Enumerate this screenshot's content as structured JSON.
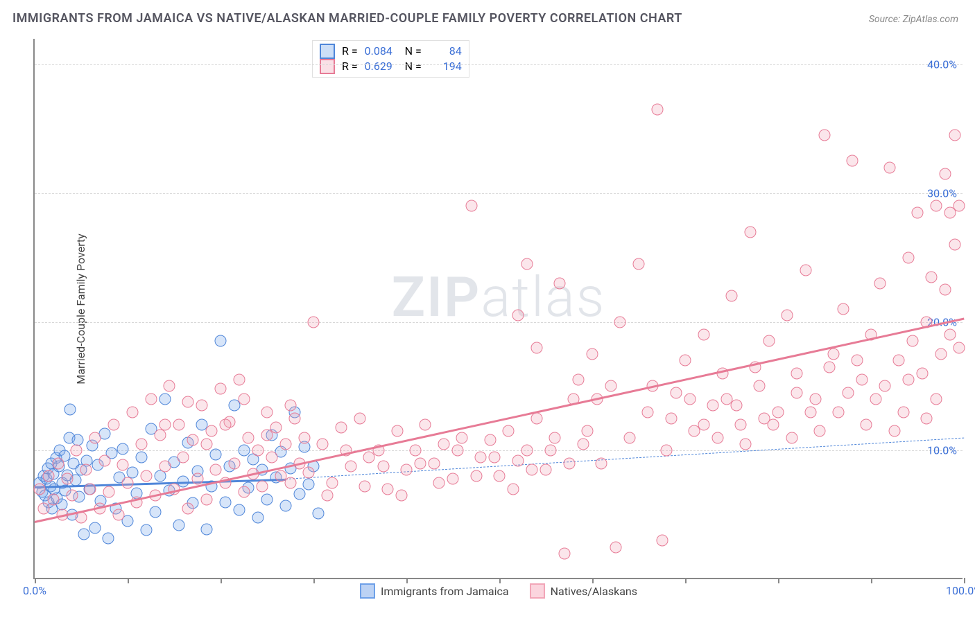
{
  "title": "IMMIGRANTS FROM JAMAICA VS NATIVE/ALASKAN MARRIED-COUPLE FAMILY POVERTY CORRELATION CHART",
  "source": "Source: ZipAtlas.com",
  "ylabel": "Married-Couple Family Poverty",
  "watermark_a": "ZIP",
  "watermark_b": "atlas",
  "chart": {
    "type": "scatter",
    "xlim": [
      0,
      100
    ],
    "ylim": [
      0,
      42
    ],
    "xtick_positions": [
      0,
      10,
      20,
      30,
      40,
      50,
      60,
      70,
      80,
      90,
      100
    ],
    "xtick_labels": {
      "0": "0.0%",
      "100": "100.0%"
    },
    "ytick_positions": [
      10,
      20,
      30,
      40
    ],
    "ytick_labels": {
      "10": "10.0%",
      "20": "20.0%",
      "30": "30.0%",
      "40": "40.0%"
    },
    "grid_color": "#d8d8d8",
    "background_color": "#ffffff",
    "axis_color": "#888888",
    "label_color": "#3b6fd6",
    "marker_size": 17,
    "marker_border_width": 1.5,
    "marker_fill_opacity": 0.28,
    "series": [
      {
        "name": "Immigrants from Jamaica",
        "color": "#6ea0e8",
        "border_color": "#4f86d9",
        "r": "0.084",
        "n": "84",
        "trend": {
          "x0": 0,
          "y0": 7.2,
          "x1": 27,
          "y1": 7.8,
          "solid_width": 3,
          "dashed_to_x": 100,
          "dashed_to_y": 11.0
        },
        "points": [
          [
            0.5,
            7.5
          ],
          [
            0.8,
            6.8
          ],
          [
            1.0,
            8.0
          ],
          [
            1.1,
            6.5
          ],
          [
            1.3,
            7.8
          ],
          [
            1.4,
            8.6
          ],
          [
            1.5,
            6.0
          ],
          [
            1.7,
            7.2
          ],
          [
            1.8,
            9.0
          ],
          [
            1.9,
            5.5
          ],
          [
            2.0,
            8.2
          ],
          [
            2.1,
            7.0
          ],
          [
            2.3,
            9.4
          ],
          [
            2.4,
            6.3
          ],
          [
            2.6,
            8.8
          ],
          [
            2.7,
            10.0
          ],
          [
            2.9,
            5.8
          ],
          [
            3.0,
            7.5
          ],
          [
            3.2,
            9.6
          ],
          [
            3.3,
            6.9
          ],
          [
            3.5,
            8.1
          ],
          [
            3.7,
            11.0
          ],
          [
            3.8,
            13.2
          ],
          [
            4.0,
            5.0
          ],
          [
            4.2,
            9.0
          ],
          [
            4.4,
            7.7
          ],
          [
            4.6,
            10.8
          ],
          [
            4.8,
            6.4
          ],
          [
            5.0,
            8.5
          ],
          [
            5.3,
            3.5
          ],
          [
            5.6,
            9.2
          ],
          [
            5.9,
            7.0
          ],
          [
            6.2,
            10.4
          ],
          [
            6.5,
            4.0
          ],
          [
            6.8,
            8.9
          ],
          [
            7.1,
            6.1
          ],
          [
            7.5,
            11.3
          ],
          [
            7.9,
            3.2
          ],
          [
            8.3,
            9.8
          ],
          [
            8.7,
            5.5
          ],
          [
            9.1,
            7.9
          ],
          [
            9.5,
            10.1
          ],
          [
            10.0,
            4.5
          ],
          [
            10.5,
            8.3
          ],
          [
            11.0,
            6.7
          ],
          [
            11.5,
            9.5
          ],
          [
            12.0,
            3.8
          ],
          [
            12.5,
            11.7
          ],
          [
            13.0,
            5.2
          ],
          [
            13.5,
            8.0
          ],
          [
            14.0,
            14.0
          ],
          [
            14.5,
            6.9
          ],
          [
            15.0,
            9.1
          ],
          [
            15.5,
            4.2
          ],
          [
            16.0,
            7.6
          ],
          [
            16.5,
            10.6
          ],
          [
            17.0,
            5.9
          ],
          [
            17.5,
            8.4
          ],
          [
            18.0,
            12.0
          ],
          [
            18.5,
            3.9
          ],
          [
            19.0,
            7.2
          ],
          [
            19.5,
            9.7
          ],
          [
            20.0,
            18.5
          ],
          [
            20.5,
            6.0
          ],
          [
            21.0,
            8.8
          ],
          [
            21.5,
            13.5
          ],
          [
            22.0,
            5.4
          ],
          [
            22.5,
            10.0
          ],
          [
            23.0,
            7.1
          ],
          [
            23.5,
            9.3
          ],
          [
            24.0,
            4.8
          ],
          [
            24.5,
            8.5
          ],
          [
            25.0,
            6.2
          ],
          [
            25.5,
            11.2
          ],
          [
            26.0,
            7.9
          ],
          [
            26.5,
            9.9
          ],
          [
            27.0,
            5.7
          ],
          [
            27.5,
            8.6
          ],
          [
            28.0,
            13.0
          ],
          [
            28.5,
            6.6
          ],
          [
            29.0,
            10.3
          ],
          [
            29.5,
            7.4
          ],
          [
            30.0,
            8.8
          ],
          [
            30.5,
            5.1
          ]
        ]
      },
      {
        "name": "Natives/Alaskans",
        "color": "#f2a6b8",
        "border_color": "#e77b96",
        "r": "0.629",
        "n": "194",
        "trend": {
          "x0": 0,
          "y0": 4.5,
          "x1": 100,
          "y1": 20.3,
          "solid_width": 3.5
        },
        "points": [
          [
            0.5,
            7.0
          ],
          [
            1.0,
            5.5
          ],
          [
            1.5,
            8.0
          ],
          [
            2.0,
            6.2
          ],
          [
            2.5,
            9.0
          ],
          [
            3.0,
            5.0
          ],
          [
            3.5,
            7.8
          ],
          [
            4.0,
            6.5
          ],
          [
            4.5,
            10.0
          ],
          [
            5.0,
            4.8
          ],
          [
            5.5,
            8.5
          ],
          [
            6.0,
            7.0
          ],
          [
            6.5,
            11.0
          ],
          [
            7.0,
            5.5
          ],
          [
            7.5,
            9.2
          ],
          [
            8.0,
            6.8
          ],
          [
            8.5,
            12.0
          ],
          [
            9.0,
            5.0
          ],
          [
            9.5,
            8.9
          ],
          [
            10.0,
            7.5
          ],
          [
            10.5,
            13.0
          ],
          [
            11.0,
            6.0
          ],
          [
            11.5,
            10.5
          ],
          [
            12.0,
            8.0
          ],
          [
            12.5,
            14.0
          ],
          [
            13.0,
            6.5
          ],
          [
            13.5,
            11.2
          ],
          [
            14.0,
            8.8
          ],
          [
            14.5,
            15.0
          ],
          [
            15.0,
            7.0
          ],
          [
            15.5,
            12.0
          ],
          [
            16.0,
            9.5
          ],
          [
            16.5,
            5.5
          ],
          [
            17.0,
            10.8
          ],
          [
            17.5,
            7.8
          ],
          [
            18.0,
            13.5
          ],
          [
            18.5,
            6.2
          ],
          [
            19.0,
            11.5
          ],
          [
            19.5,
            8.5
          ],
          [
            20.0,
            14.8
          ],
          [
            20.5,
            7.5
          ],
          [
            21.0,
            12.2
          ],
          [
            21.5,
            9.0
          ],
          [
            22.0,
            15.5
          ],
          [
            22.5,
            6.8
          ],
          [
            23.0,
            11.0
          ],
          [
            23.5,
            8.2
          ],
          [
            24.0,
            10.0
          ],
          [
            24.5,
            7.2
          ],
          [
            25.0,
            13.0
          ],
          [
            25.5,
            9.5
          ],
          [
            26.0,
            11.8
          ],
          [
            26.5,
            8.0
          ],
          [
            27.0,
            10.5
          ],
          [
            27.5,
            7.5
          ],
          [
            28.0,
            12.5
          ],
          [
            28.5,
            9.0
          ],
          [
            29.0,
            11.0
          ],
          [
            29.5,
            8.3
          ],
          [
            30.0,
            20.0
          ],
          [
            31.0,
            10.5
          ],
          [
            32.0,
            7.5
          ],
          [
            33.0,
            11.8
          ],
          [
            34.0,
            8.8
          ],
          [
            35.0,
            12.5
          ],
          [
            36.0,
            9.5
          ],
          [
            37.0,
            10.0
          ],
          [
            38.0,
            7.0
          ],
          [
            39.0,
            11.5
          ],
          [
            40.0,
            8.5
          ],
          [
            41.0,
            10.0
          ],
          [
            42.0,
            12.0
          ],
          [
            43.0,
            9.0
          ],
          [
            44.0,
            10.5
          ],
          [
            45.0,
            7.8
          ],
          [
            46.0,
            11.0
          ],
          [
            47.0,
            29.0
          ],
          [
            48.0,
            9.5
          ],
          [
            49.0,
            10.8
          ],
          [
            50.0,
            8.0
          ],
          [
            51.0,
            11.5
          ],
          [
            52.0,
            9.2
          ],
          [
            53.0,
            10.0
          ],
          [
            54.0,
            12.5
          ],
          [
            55.0,
            8.5
          ],
          [
            56.0,
            11.0
          ],
          [
            57.0,
            2.0
          ],
          [
            58.0,
            14.0
          ],
          [
            59.0,
            10.5
          ],
          [
            60.0,
            17.5
          ],
          [
            61.0,
            9.0
          ],
          [
            62.0,
            15.0
          ],
          [
            63.0,
            20.0
          ],
          [
            64.0,
            11.0
          ],
          [
            65.0,
            24.5
          ],
          [
            66.0,
            13.0
          ],
          [
            67.0,
            36.5
          ],
          [
            68.0,
            10.0
          ],
          [
            69.0,
            14.5
          ],
          [
            70.0,
            17.0
          ],
          [
            71.0,
            11.5
          ],
          [
            72.0,
            19.0
          ],
          [
            73.0,
            13.5
          ],
          [
            74.0,
            16.0
          ],
          [
            75.0,
            22.0
          ],
          [
            76.0,
            12.0
          ],
          [
            77.0,
            27.0
          ],
          [
            78.0,
            15.0
          ],
          [
            79.0,
            18.5
          ],
          [
            80.0,
            13.0
          ],
          [
            81.0,
            20.5
          ],
          [
            82.0,
            16.0
          ],
          [
            83.0,
            24.0
          ],
          [
            84.0,
            14.0
          ],
          [
            85.0,
            34.5
          ],
          [
            86.0,
            17.5
          ],
          [
            87.0,
            21.0
          ],
          [
            88.0,
            32.5
          ],
          [
            89.0,
            15.5
          ],
          [
            90.0,
            19.0
          ],
          [
            91.0,
            23.0
          ],
          [
            92.0,
            32.0
          ],
          [
            93.0,
            17.0
          ],
          [
            94.0,
            25.0
          ],
          [
            95.0,
            28.5
          ],
          [
            96.0,
            20.0
          ],
          [
            97.0,
            29.0
          ],
          [
            98.0,
            22.5
          ],
          [
            99.0,
            34.5
          ],
          [
            99.5,
            18.0
          ],
          [
            62.5,
            2.5
          ],
          [
            67.5,
            3.0
          ],
          [
            72.0,
            12.0
          ],
          [
            74.5,
            14.0
          ],
          [
            76.5,
            10.5
          ],
          [
            78.5,
            12.5
          ],
          [
            81.5,
            11.0
          ],
          [
            83.5,
            13.0
          ],
          [
            85.5,
            16.5
          ],
          [
            87.5,
            14.5
          ],
          [
            89.5,
            12.0
          ],
          [
            91.5,
            15.0
          ],
          [
            93.5,
            13.0
          ],
          [
            94.5,
            18.5
          ],
          [
            95.5,
            16.0
          ],
          [
            96.5,
            23.5
          ],
          [
            97.5,
            17.5
          ],
          [
            98.0,
            31.5
          ],
          [
            98.5,
            28.5
          ],
          [
            99.0,
            26.0
          ],
          [
            31.5,
            6.5
          ],
          [
            33.5,
            10.0
          ],
          [
            35.5,
            7.2
          ],
          [
            37.5,
            8.8
          ],
          [
            39.5,
            6.5
          ],
          [
            41.5,
            9.0
          ],
          [
            43.5,
            7.5
          ],
          [
            45.5,
            10.0
          ],
          [
            47.5,
            8.0
          ],
          [
            49.5,
            9.5
          ],
          [
            51.5,
            7.0
          ],
          [
            53.5,
            8.5
          ],
          [
            55.5,
            10.0
          ],
          [
            57.5,
            9.0
          ],
          [
            59.5,
            11.5
          ],
          [
            52.0,
            20.5
          ],
          [
            54.0,
            18.0
          ],
          [
            56.5,
            23.0
          ],
          [
            58.5,
            15.5
          ],
          [
            60.5,
            14.0
          ],
          [
            53.0,
            24.5
          ],
          [
            66.5,
            15.0
          ],
          [
            68.5,
            12.5
          ],
          [
            70.5,
            14.0
          ],
          [
            73.5,
            11.0
          ],
          [
            75.5,
            13.5
          ],
          [
            77.5,
            16.5
          ],
          [
            79.5,
            12.0
          ],
          [
            82.0,
            14.5
          ],
          [
            84.5,
            11.5
          ],
          [
            86.5,
            13.0
          ],
          [
            88.5,
            17.0
          ],
          [
            90.5,
            14.0
          ],
          [
            92.5,
            11.5
          ],
          [
            94.0,
            15.5
          ],
          [
            96.0,
            12.5
          ],
          [
            97.0,
            14.0
          ],
          [
            98.5,
            19.0
          ],
          [
            99.5,
            29.0
          ],
          [
            14.0,
            12.0
          ],
          [
            16.5,
            13.8
          ],
          [
            18.5,
            10.5
          ],
          [
            20.5,
            12.0
          ],
          [
            22.5,
            14.0
          ],
          [
            25.0,
            11.2
          ],
          [
            27.5,
            13.5
          ]
        ]
      }
    ]
  },
  "legend_bottom": [
    {
      "label": "Immigrants from Jamaica",
      "fill": "#bcd2f4",
      "border": "#6ea0e8"
    },
    {
      "label": "Natives/Alaskans",
      "fill": "#fbd5de",
      "border": "#f2a6b8"
    }
  ]
}
